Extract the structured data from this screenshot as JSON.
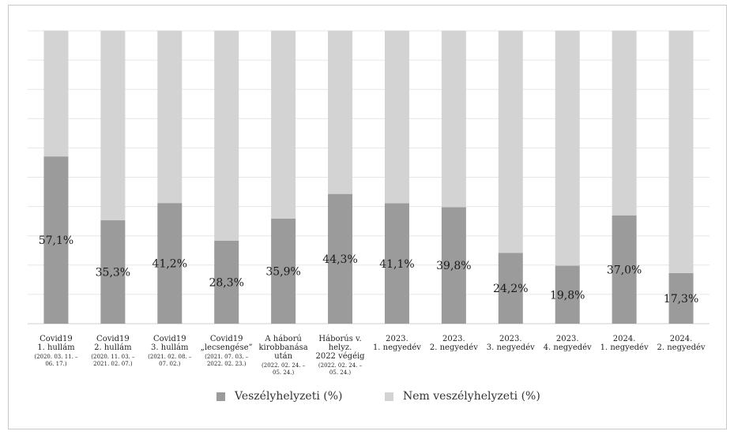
{
  "chart_data": {
    "type": "bar",
    "stacked": true,
    "percent_stacked": true,
    "ylim": [
      0,
      100
    ],
    "grid": true,
    "legend_position": "bottom",
    "categories": [
      {
        "line1": "Covid19",
        "line2": "1. hullám",
        "sub1": "(2020. 03. 11. –",
        "sub2": "06. 17.)"
      },
      {
        "line1": "Covid19",
        "line2": "2. hullám",
        "sub1": "(2020. 11. 03. –",
        "sub2": "2021. 02. 07.)"
      },
      {
        "line1": "Covid19",
        "line2": "3. hullám",
        "sub1": "(2021. 02. 08. –",
        "sub2": "07. 02.)"
      },
      {
        "line1": "Covid19",
        "line2": "„lecsengése”",
        "sub1": "(2021. 07. 03. –",
        "sub2": "2022. 02. 23.)"
      },
      {
        "line1": "A háború",
        "line2": "kirobbanása után",
        "sub1": "(2022. 02. 24. –",
        "sub2": "05. 24.)"
      },
      {
        "line1": "Háborús v. helyz.",
        "line2": "2022 végéig",
        "sub1": "(2022. 02. 24. –",
        "sub2": "05. 24.)"
      },
      {
        "line1": "2023.",
        "line2": "1. negyedév",
        "sub1": "",
        "sub2": ""
      },
      {
        "line1": "2023.",
        "line2": "2. negyedév",
        "sub1": "",
        "sub2": ""
      },
      {
        "line1": "2023.",
        "line2": "3. negyedév",
        "sub1": "",
        "sub2": ""
      },
      {
        "line1": "2023.",
        "line2": "4. negyedév",
        "sub1": "",
        "sub2": ""
      },
      {
        "line1": "2024.",
        "line2": "1. negyedév",
        "sub1": "",
        "sub2": ""
      },
      {
        "line1": "2024.",
        "line2": "2. negyedév",
        "sub1": "",
        "sub2": ""
      }
    ],
    "series": [
      {
        "name": "Veszélyhelyzeti (%)",
        "color": "#9b9b9b",
        "values": [
          57.1,
          35.3,
          41.2,
          28.3,
          35.9,
          44.3,
          41.1,
          39.8,
          24.2,
          19.8,
          37.0,
          17.3
        ],
        "labels": [
          "57,1%",
          "35,3%",
          "41,2%",
          "28,3%",
          "35,9%",
          "44,3%",
          "41,1%",
          "39,8%",
          "24,2%",
          "19,8%",
          "37,0%",
          "17,3%"
        ]
      },
      {
        "name": "Nem veszélyhelyzeti (%)",
        "color": "#d3d3d3",
        "values": [
          42.9,
          64.7,
          58.8,
          71.7,
          64.1,
          55.7,
          58.9,
          60.2,
          75.8,
          80.2,
          63.0,
          82.7
        ]
      }
    ]
  }
}
